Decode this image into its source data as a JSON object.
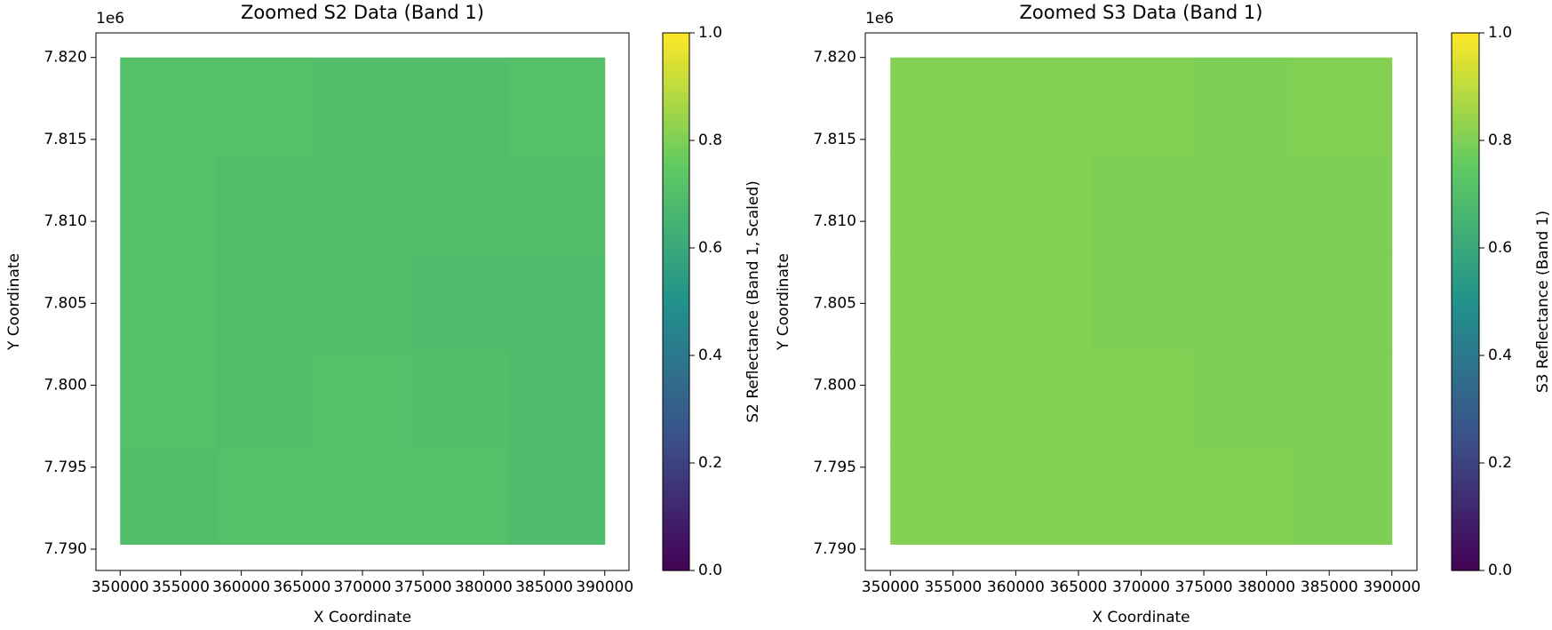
{
  "chart_data": [
    {
      "type": "heatmap",
      "title": "Zoomed S2 Data (Band 1)",
      "xlabel": "X Coordinate",
      "ylabel": "Y Coordinate",
      "y_offset_label": "1e6",
      "colorbar_label": "S2 Reflectance (Band 1, Scaled)",
      "colormap": "viridis",
      "xlim": [
        348000,
        392000
      ],
      "ylim": [
        7788700,
        7821500
      ],
      "xticks": [
        350000,
        355000,
        360000,
        365000,
        370000,
        375000,
        380000,
        385000,
        390000
      ],
      "yticks": [
        {
          "value": 7790000,
          "label": "7.790"
        },
        {
          "value": 7795000,
          "label": "7.795"
        },
        {
          "value": 7800000,
          "label": "7.800"
        },
        {
          "value": 7805000,
          "label": "7.805"
        },
        {
          "value": 7810000,
          "label": "7.810"
        },
        {
          "value": 7815000,
          "label": "7.815"
        },
        {
          "value": 7820000,
          "label": "7.820"
        }
      ],
      "clim": [
        0,
        1
      ],
      "cticks": [
        {
          "value": 0,
          "label": "0.0"
        },
        {
          "value": 0.2,
          "label": "0.2"
        },
        {
          "value": 0.4,
          "label": "0.4"
        },
        {
          "value": 0.6,
          "label": "0.6"
        },
        {
          "value": 0.8,
          "label": "0.8"
        },
        {
          "value": 1,
          "label": "1.0"
        }
      ],
      "x_edges": [
        350000,
        358000,
        366000,
        374000,
        382000,
        390000
      ],
      "y_edges": [
        7790300,
        7796200,
        7802100,
        7808000,
        7814000,
        7820000
      ],
      "z": [
        [
          0.7,
          0.71,
          0.71,
          0.71,
          0.69
        ],
        [
          0.71,
          0.7,
          0.71,
          0.7,
          0.69
        ],
        [
          0.71,
          0.7,
          0.7,
          0.69,
          0.69
        ],
        [
          0.71,
          0.7,
          0.7,
          0.7,
          0.7
        ],
        [
          0.71,
          0.71,
          0.7,
          0.7,
          0.71
        ]
      ]
    },
    {
      "type": "heatmap",
      "title": "Zoomed S3 Data (Band 1)",
      "xlabel": "X Coordinate",
      "ylabel": "Y Coordinate",
      "y_offset_label": "1e6",
      "colorbar_label": "S3 Reflectance (Band 1)",
      "colormap": "viridis",
      "xlim": [
        348000,
        392000
      ],
      "ylim": [
        7788700,
        7821500
      ],
      "xticks": [
        350000,
        355000,
        360000,
        365000,
        370000,
        375000,
        380000,
        385000,
        390000
      ],
      "yticks": [
        {
          "value": 7790000,
          "label": "7.790"
        },
        {
          "value": 7795000,
          "label": "7.795"
        },
        {
          "value": 7800000,
          "label": "7.800"
        },
        {
          "value": 7805000,
          "label": "7.805"
        },
        {
          "value": 7810000,
          "label": "7.810"
        },
        {
          "value": 7815000,
          "label": "7.815"
        },
        {
          "value": 7820000,
          "label": "7.820"
        }
      ],
      "clim": [
        0,
        1
      ],
      "cticks": [
        {
          "value": 0,
          "label": "0.0"
        },
        {
          "value": 0.2,
          "label": "0.2"
        },
        {
          "value": 0.4,
          "label": "0.4"
        },
        {
          "value": 0.6,
          "label": "0.6"
        },
        {
          "value": 0.8,
          "label": "0.8"
        },
        {
          "value": 1,
          "label": "1.0"
        }
      ],
      "x_edges": [
        350000,
        358000,
        366000,
        374000,
        382000,
        390000
      ],
      "y_edges": [
        7790300,
        7796200,
        7802100,
        7808000,
        7814000,
        7820000
      ],
      "z": [
        [
          0.81,
          0.81,
          0.81,
          0.81,
          0.8
        ],
        [
          0.81,
          0.81,
          0.81,
          0.8,
          0.8
        ],
        [
          0.81,
          0.81,
          0.8,
          0.8,
          0.8
        ],
        [
          0.81,
          0.81,
          0.8,
          0.8,
          0.8
        ],
        [
          0.81,
          0.81,
          0.81,
          0.8,
          0.81
        ]
      ]
    }
  ]
}
